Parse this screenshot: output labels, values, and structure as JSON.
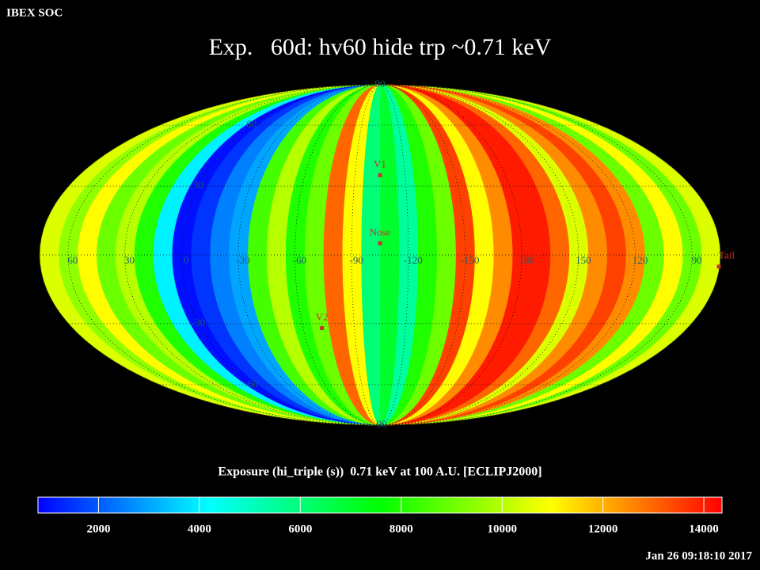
{
  "header": {
    "source": "IBEX SOC",
    "title": "Exp.   60d: hv60 hide trp ~0.71 keV",
    "timestamp": "Jan 26 09:18:10 2017"
  },
  "map": {
    "type": "mollweide",
    "center_longitude": 255,
    "longitude_direction": "left",
    "grid": true,
    "lon_ticks": [
      60,
      30,
      0,
      -30,
      -60,
      -90,
      -120,
      -150,
      180,
      150,
      120,
      90
    ],
    "lat_ticks": [
      90,
      60,
      30,
      -30,
      -60,
      -90
    ],
    "stripes": [
      10500,
      9000,
      11000,
      9000,
      12500,
      13500,
      12500,
      10500,
      13000,
      14000,
      14000,
      12500,
      11000,
      13500,
      9000,
      8000,
      5500,
      7000,
      6000,
      11000,
      13000,
      9000,
      8000,
      10000,
      8500,
      3000,
      2500,
      1500,
      1000,
      4000,
      8000,
      10000,
      9000,
      11000,
      9500,
      10500
    ],
    "point_color": "#c8322d",
    "points": [
      {
        "label": "V1",
        "lon": 255,
        "lat": 35
      },
      {
        "label": "Nose",
        "lon": 255,
        "lat": 5
      },
      {
        "label": "V2",
        "lon": 289,
        "lat": -32
      },
      {
        "label": "Tail",
        "lon": 75,
        "lat": -5
      }
    ]
  },
  "colorbar": {
    "label": "Exposure (hi_triple (s))  0.71 keV at 100 A.U. [ECLIPJ2000]",
    "range": [
      800,
      14360
    ],
    "ticks": [
      2000,
      4000,
      6000,
      8000,
      10000,
      12000,
      14000
    ],
    "colors": [
      "#0000ff",
      "#00ffff",
      "#00ff00",
      "#ffff00",
      "#ff0000"
    ]
  }
}
